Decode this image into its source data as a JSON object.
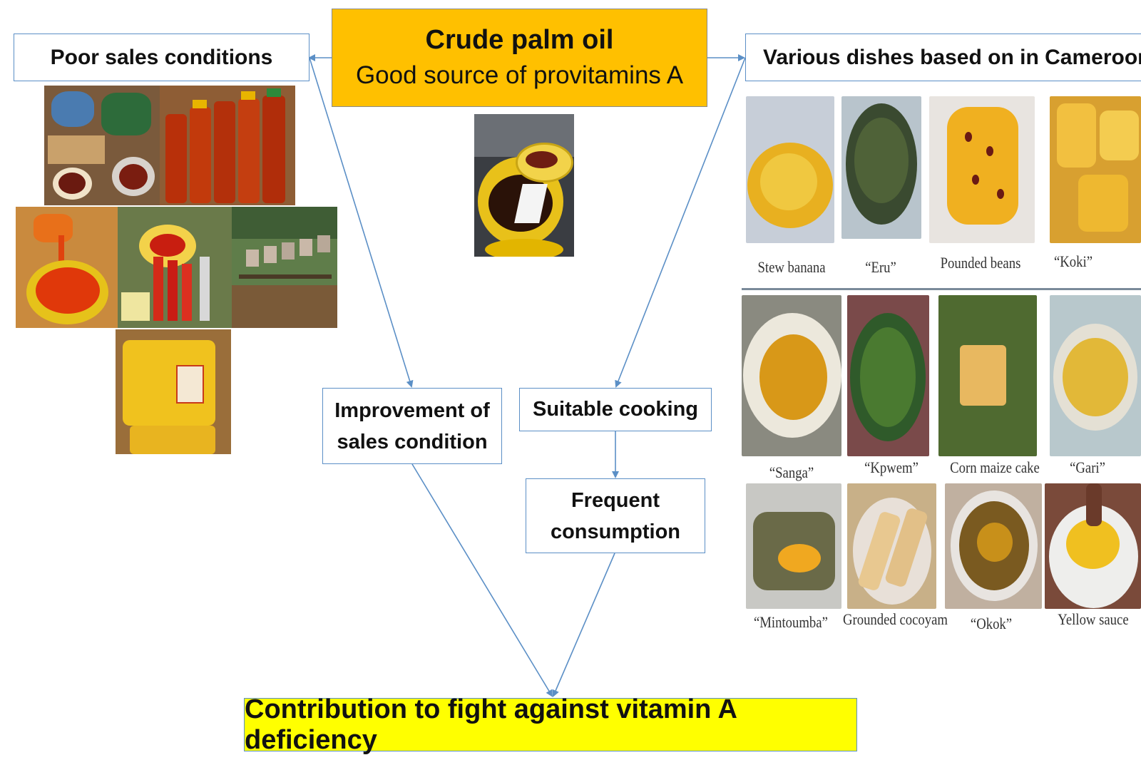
{
  "center": {
    "title": "Crude palm oil",
    "subtitle": "Good source of provitamins A"
  },
  "left_box": {
    "label": "Poor sales conditions"
  },
  "right_box": {
    "label": "Various dishes based on in Cameroon"
  },
  "improvement_box": {
    "line1": "Improvement of",
    "line2": "sales condition"
  },
  "cooking_box": {
    "label": "Suitable cooking"
  },
  "frequent_box": {
    "line1": "Frequent",
    "line2": "consumption"
  },
  "final_box": {
    "label": "Contribution to fight against vitamin A deficiency"
  },
  "dishes": {
    "row1": [
      "Stew banana",
      "“Eru”",
      "Pounded beans",
      "“Koki”"
    ],
    "row2": [
      "“Sanga”",
      "“Kpwem”",
      "Corn maize cake",
      "“Gari”"
    ],
    "row3": [
      "“Mintoumba”",
      "Grounded cocoyam",
      "“Okok”",
      "Yellow sauce"
    ]
  },
  "colors": {
    "center_fill": "#ffc000",
    "final_fill": "#ffff00",
    "box_border": "#5b8fc6",
    "arrow": "#5b8fc6"
  }
}
